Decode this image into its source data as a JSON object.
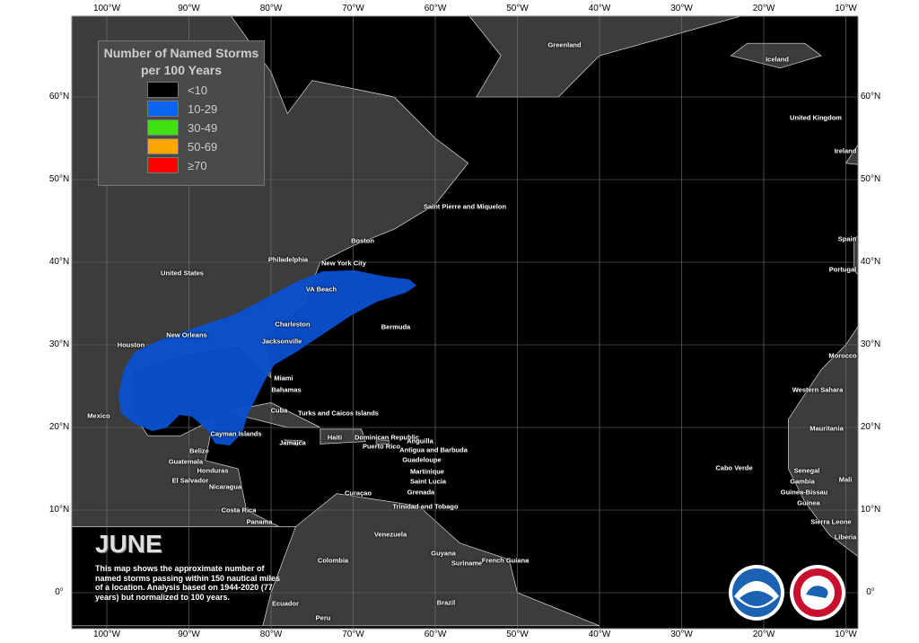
{
  "legend": {
    "title_line1": "Number of Named Storms",
    "title_line2": "per 100 Years",
    "items": [
      {
        "label": "<10",
        "color": "#000000"
      },
      {
        "label": "10-29",
        "color": "#0a64f0"
      },
      {
        "label": "30-49",
        "color": "#40e010"
      },
      {
        "label": "50-69",
        "color": "#ffa500"
      },
      {
        "label": "≥70",
        "color": "#ff0000"
      }
    ]
  },
  "month": "JUNE",
  "description": "This map shows the approximate number of named storms passing within 150 nautical miles of a location. Analysis based on 1944-2020 (77 years) but normalized to 100 years.",
  "lon_ticks": [
    "100°W",
    "90°W",
    "80°W",
    "70°W",
    "60°W",
    "50°W",
    "40°W",
    "30°W",
    "20°W",
    "10°W"
  ],
  "lat_ticks": [
    "60°N",
    "50°N",
    "40°N",
    "30°N",
    "20°N",
    "10°N",
    "0°"
  ],
  "storm_region_color": "#0a50d0",
  "places": [
    "Greenland",
    "Iceland",
    "United Kingdom",
    "Ireland",
    "Saint Pierre and Miquelon",
    "Boston",
    "Philadelphia",
    "New York City",
    "United States",
    "Spain",
    "Portugal",
    "VA Beach",
    "Charleston",
    "Bermuda",
    "New Orleans",
    "Houston",
    "Jacksonville",
    "Morocco",
    "Miami",
    "Bahamas",
    "Western Sahara",
    "Mexico",
    "Cuba",
    "Turks and Caicos Islands",
    "Mauritania",
    "Cayman Islands",
    "Haiti",
    "Dominican Republic",
    "Jamaica",
    "Anguilla",
    "Puerto Rico",
    "Antigua and Barbuda",
    "Belize",
    "Guadeloupe",
    "Guatemala",
    "Cabo Verde",
    "Senegal",
    "Honduras",
    "Martinique",
    "El Salvador",
    "Gambia",
    "Mali",
    "Saint Lucia",
    "Nicaragua",
    "Grenada",
    "Curaçao",
    "Guinea-Bissau",
    "Guinea",
    "Trinidad and Tobago",
    "Costa Rica",
    "Sierra Leone",
    "Panama",
    "Liberia",
    "Venezuela",
    "Guyana",
    "French Guiana",
    "Suriname",
    "Colombia",
    "Ecuador",
    "Brazil",
    "Peru"
  ],
  "logos": {
    "noaa": "NOAA",
    "nws": "NATIONAL WEATHER SERVICE"
  }
}
